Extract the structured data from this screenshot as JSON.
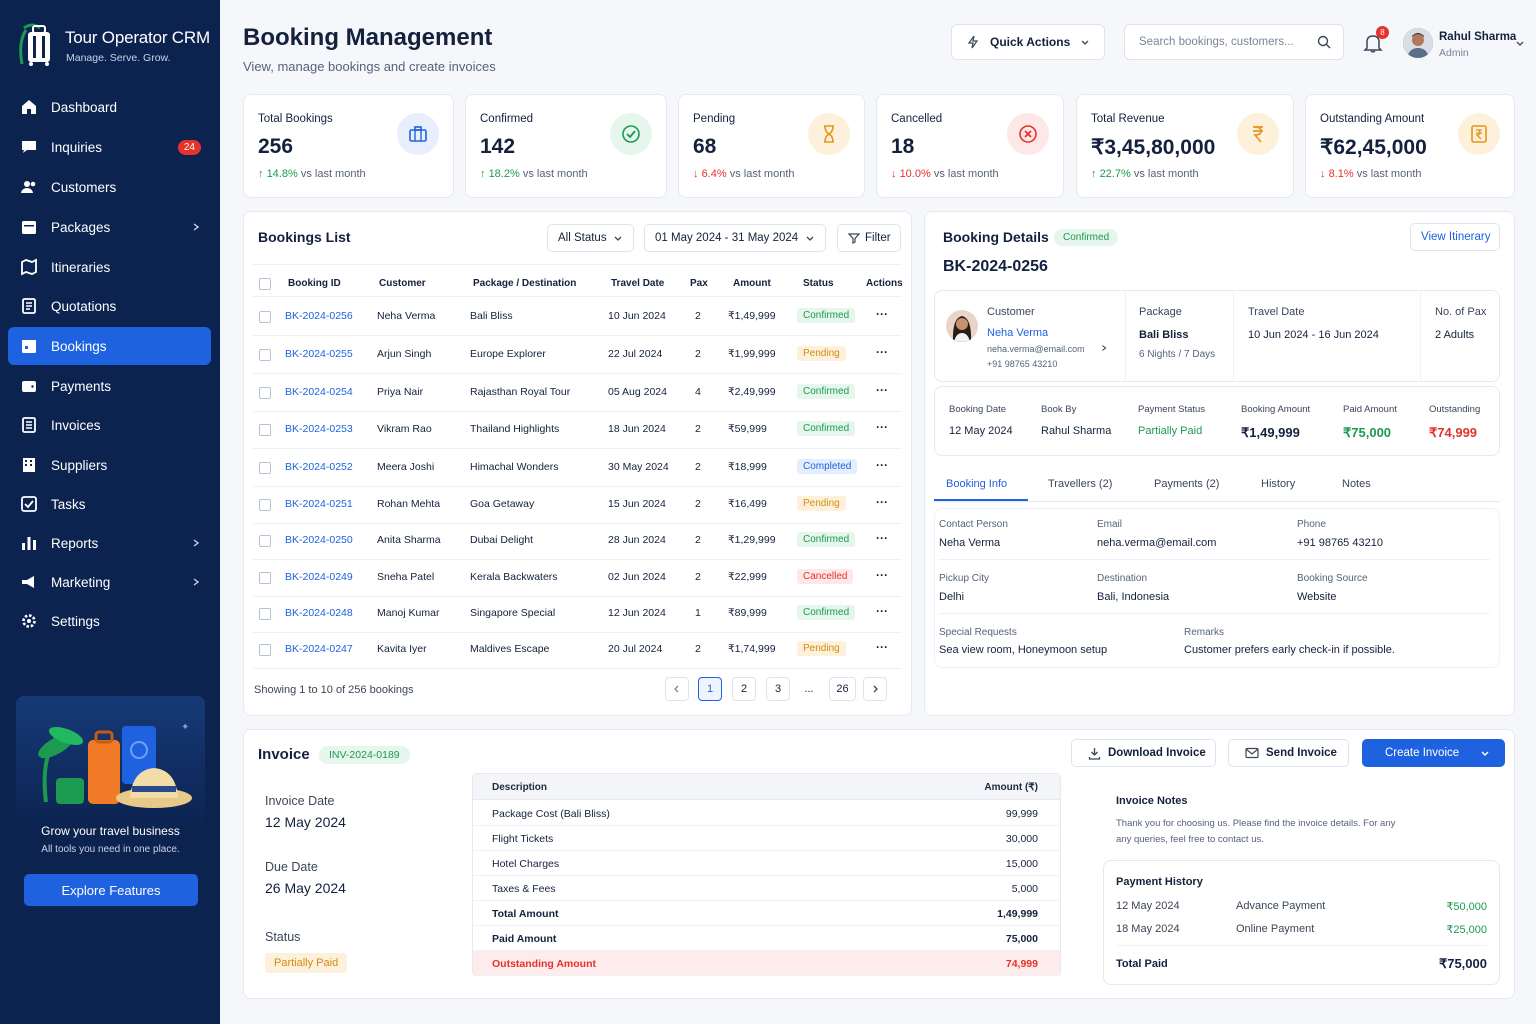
{
  "app": {
    "name": "Tour Operator CRM",
    "tagline": "Manage. Serve. Grow."
  },
  "nav": [
    {
      "label": "Dashboard",
      "icon": "home-icon"
    },
    {
      "label": "Inquiries",
      "icon": "chat-icon",
      "badge": "24"
    },
    {
      "label": "Customers",
      "icon": "users-icon"
    },
    {
      "label": "Packages",
      "icon": "calendar-icon",
      "chevron": true
    },
    {
      "label": "Itineraries",
      "icon": "map-icon"
    },
    {
      "label": "Quotations",
      "icon": "document-icon"
    },
    {
      "label": "Bookings",
      "icon": "calendar-check-icon",
      "active": true
    },
    {
      "label": "Payments",
      "icon": "wallet-icon"
    },
    {
      "label": "Invoices",
      "icon": "invoice-icon"
    },
    {
      "label": "Suppliers",
      "icon": "building-icon"
    },
    {
      "label": "Tasks",
      "icon": "checkbox-icon"
    },
    {
      "label": "Reports",
      "icon": "bar-chart-icon",
      "chevron": true
    },
    {
      "label": "Marketing",
      "icon": "megaphone-icon",
      "chevron": true
    },
    {
      "label": "Settings",
      "icon": "gear-icon"
    }
  ],
  "promo": {
    "title": "Grow your travel business",
    "subtitle": "All tools you need in one place.",
    "button": "Explore Features"
  },
  "header": {
    "title": "Booking Management",
    "subtitle": "View, manage bookings and create invoices",
    "quick_actions": "Quick Actions",
    "search_placeholder": "Search bookings, customers...",
    "notifications": "8",
    "user": {
      "name": "Rahul Sharma",
      "role": "Admin"
    }
  },
  "stats": [
    {
      "label": "Total Bookings",
      "value": "256",
      "change": "14.8%",
      "direction": "up",
      "suffix": "vs last month",
      "color": "#1f62e0"
    },
    {
      "label": "Confirmed",
      "value": "142",
      "change": "18.2%",
      "direction": "up",
      "suffix": "vs last month",
      "color": "#1c9a50"
    },
    {
      "label": "Pending",
      "value": "68",
      "change": "6.4%",
      "direction": "down",
      "suffix": "vs last month",
      "color": "#e8941a"
    },
    {
      "label": "Cancelled",
      "value": "18",
      "change": "10.0%",
      "direction": "down",
      "suffix": "vs last month",
      "color": "#e5322d"
    },
    {
      "label": "Total Revenue",
      "value": "₹3,45,80,000",
      "change": "22.7%",
      "direction": "up",
      "suffix": "vs last month",
      "color": "#e8941a"
    },
    {
      "label": "Outstanding Amount",
      "value": "₹62,45,000",
      "change": "8.1%",
      "direction": "down",
      "suffix": "vs last month",
      "color": "#e8941a"
    }
  ],
  "bookings_list": {
    "title": "Bookings List",
    "status_filter": "All Status",
    "date_range": "01 May 2024 - 31 May 2024",
    "filter": "Filter",
    "columns": [
      "Booking ID",
      "Customer",
      "Package / Destination",
      "Travel Date",
      "Pax",
      "Amount",
      "Status",
      "Actions"
    ],
    "rows": [
      [
        "BK-2024-0256",
        "Neha Verma",
        "Bali Bliss",
        "10 Jun 2024",
        "2",
        "₹1,49,999",
        "Confirmed"
      ],
      [
        "BK-2024-0255",
        "Arjun Singh",
        "Europe Explorer",
        "22 Jul 2024",
        "2",
        "₹1,99,999",
        "Pending"
      ],
      [
        "BK-2024-0254",
        "Priya Nair",
        "Rajasthan Royal Tour",
        "05 Aug 2024",
        "4",
        "₹2,49,999",
        "Confirmed"
      ],
      [
        "BK-2024-0253",
        "Vikram Rao",
        "Thailand Highlights",
        "18 Jun 2024",
        "2",
        "₹59,999",
        "Confirmed"
      ],
      [
        "BK-2024-0252",
        "Meera Joshi",
        "Himachal Wonders",
        "30 May 2024",
        "2",
        "₹18,999",
        "Completed"
      ],
      [
        "BK-2024-0251",
        "Rohan Mehta",
        "Goa Getaway",
        "15 Jun 2024",
        "2",
        "₹16,499",
        "Pending"
      ],
      [
        "BK-2024-0250",
        "Anita Sharma",
        "Dubai Delight",
        "28 Jun 2024",
        "2",
        "₹1,29,999",
        "Confirmed"
      ],
      [
        "BK-2024-0249",
        "Sneha Patel",
        "Kerala Backwaters",
        "02 Jun 2024",
        "2",
        "₹22,999",
        "Cancelled"
      ],
      [
        "BK-2024-0248",
        "Manoj Kumar",
        "Singapore Special",
        "12 Jun 2024",
        "1",
        "₹89,999",
        "Confirmed"
      ],
      [
        "BK-2024-0247",
        "Kavita Iyer",
        "Maldives Escape",
        "20 Jul 2024",
        "2",
        "₹1,74,999",
        "Pending"
      ]
    ],
    "actions_glyph": "···",
    "showing": "Showing 1 to 10 of 256 bookings",
    "pages": [
      "1",
      "2",
      "3",
      "...",
      "26"
    ]
  },
  "details": {
    "title": "Booking Details",
    "status": "Confirmed",
    "view_itinerary": "View Itinerary",
    "booking_id": "BK-2024-0256",
    "customer_label": "Customer",
    "customer_name": "Neha Verma",
    "customer_email": "neha.verma@email.com",
    "customer_phone": "+91 98765 43210",
    "package_label": "Package",
    "package_name": "Bali Bliss",
    "package_duration": "6 Nights / 7 Days",
    "travel_label": "Travel Date",
    "travel_value": "10 Jun 2024 - 16 Jun 2024",
    "pax_label": "No. of Pax",
    "pax_value": "2 Adults",
    "summary": [
      {
        "label": "Booking Date",
        "value": "12 May 2024"
      },
      {
        "label": "Book By",
        "value": "Rahul Sharma"
      },
      {
        "label": "Payment Status",
        "value": "Partially Paid"
      },
      {
        "label": "Booking Amount",
        "value": "₹1,49,999"
      },
      {
        "label": "Paid Amount",
        "value": "₹75,000"
      },
      {
        "label": "Outstanding",
        "value": "₹74,999"
      }
    ],
    "tabs": [
      "Booking Info",
      "Travellers (2)",
      "Payments (2)",
      "History",
      "Notes"
    ],
    "info": {
      "contact_label": "Contact Person",
      "contact": "Neha Verma",
      "email_label": "Email",
      "email": "neha.verma@email.com",
      "phone_label": "Phone",
      "phone": "+91 98765 43210",
      "pickup_label": "Pickup City",
      "pickup": "Delhi",
      "dest_label": "Destination",
      "dest": "Bali, Indonesia",
      "source_label": "Booking Source",
      "source": "Website",
      "requests_label": "Special Requests",
      "requests": "Sea view room, Honeymoon setup",
      "remarks_label": "Remarks",
      "remarks": "Customer prefers early check-in if possible."
    }
  },
  "invoice": {
    "title": "Invoice",
    "number": "INV-2024-0189",
    "download": "Download Invoice",
    "send": "Send Invoice",
    "create": "Create Invoice",
    "invoice_date_label": "Invoice Date",
    "invoice_date": "12 May 2024",
    "due_date_label": "Due Date",
    "due_date": "26 May 2024",
    "status_label": "Status",
    "status": "Partially Paid",
    "table_header": {
      "desc": "Description",
      "amount": "Amount (₹)"
    },
    "lines": [
      {
        "desc": "Package Cost (Bali Bliss)",
        "amount": "99,999"
      },
      {
        "desc": "Flight Tickets",
        "amount": "30,000"
      },
      {
        "desc": "Hotel Charges",
        "amount": "15,000"
      },
      {
        "desc": "Taxes & Fees",
        "amount": "5,000"
      },
      {
        "desc": "Total Amount",
        "amount": "1,49,999",
        "style": "bold"
      },
      {
        "desc": "Paid Amount",
        "amount": "75,000",
        "style": "bold"
      },
      {
        "desc": "Outstanding Amount",
        "amount": "74,999",
        "style": "red"
      }
    ],
    "notes_title": "Invoice Notes",
    "notes_line1": "Thank you for choosing us. Please find the invoice details. For any",
    "notes_line2": "any queries, feel free to contact us.",
    "payment_history_title": "Payment History",
    "payments": [
      {
        "date": "12 May 2024",
        "type": "Advance Payment",
        "amount": "₹50,000"
      },
      {
        "date": "18 May 2024",
        "type": "Online Payment",
        "amount": "₹25,000"
      }
    ],
    "total_paid_label": "Total Paid",
    "total_paid": "₹75,000"
  }
}
